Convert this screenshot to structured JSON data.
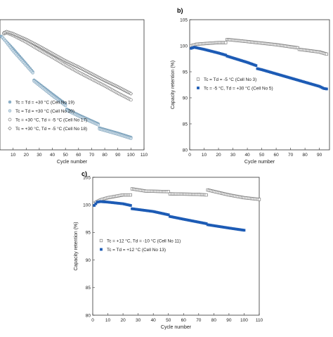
{
  "panels": [
    {
      "id": "a",
      "label": "",
      "chart_data": {
        "type": "scatter",
        "xlabel": "Cycle number",
        "ylabel": "",
        "xlim": [
          0,
          110
        ],
        "ylim": [
          80,
          105
        ],
        "xticks": [
          "10",
          "20",
          "30",
          "40",
          "50",
          "60",
          "70",
          "80",
          "90",
          "100",
          "110"
        ],
        "yticks": [],
        "legend_position": "bottom-left",
        "series": [
          {
            "name": "Tc = Td = +30 °C (Cell No 19)",
            "marker": "filled-circle",
            "color": "#8fb4cc",
            "x": [
              1,
              10,
              20,
              25,
              26,
              40,
              50,
              51,
              60,
              75,
              76,
              90,
              100
            ],
            "y": [
              101.8,
              99.4,
              96.5,
              95.0,
              93.4,
              90.7,
              88.8,
              87.8,
              86.7,
              85.0,
              84.2,
              83.2,
              82.4
            ]
          },
          {
            "name": "Tc = Td = +30 °C (Cell No 20)",
            "marker": "filled-circle",
            "color": "#c9dbe7",
            "x": [
              2,
              10,
              20,
              25,
              26,
              40,
              50,
              51,
              60,
              75,
              76,
              90,
              100
            ],
            "y": [
              101.6,
              99.0,
              96.2,
              94.8,
              93.2,
              90.4,
              88.5,
              87.6,
              86.5,
              84.8,
              84.0,
              83.0,
              82.2
            ]
          },
          {
            "name": "Tc = +30 °C, Td = -5 °C (Cell No 17)",
            "marker": "open-circle",
            "color": "#7f7f7f",
            "x": [
              3,
              5,
              10,
              20,
              30,
              40,
              50,
              60,
              70,
              80,
              90,
              100
            ],
            "y": [
              102.3,
              102.5,
              102.0,
              100.7,
              99.2,
              97.8,
              96.3,
              94.9,
              93.6,
              92.3,
              90.9,
              89.6
            ]
          },
          {
            "name": "Tc = +30 °C, Td = -5 °C (Cell No 18)",
            "marker": "open-diamond",
            "color": "#7f7f7f",
            "x": [
              3,
              5,
              10,
              20,
              30,
              40,
              50,
              60,
              70,
              80,
              90,
              100
            ],
            "y": [
              102.5,
              102.7,
              102.3,
              101.2,
              99.9,
              98.5,
              97.1,
              95.9,
              94.6,
              93.3,
              92.1,
              90.8
            ]
          }
        ]
      }
    },
    {
      "id": "b",
      "label": "b)",
      "chart_data": {
        "type": "scatter",
        "xlabel": "Cycle number",
        "ylabel": "Capacity retention (%)",
        "xlim": [
          0,
          97
        ],
        "ylim": [
          80,
          105
        ],
        "xticks": [
          "0",
          "10",
          "20",
          "30",
          "40",
          "50",
          "60",
          "70",
          "80",
          "90"
        ],
        "yticks": [
          "80",
          "85",
          "90",
          "95",
          "100",
          "105"
        ],
        "legend_position": "middle-left",
        "series": [
          {
            "name": "Tc = Td = -5 °C (Cell No 3)",
            "marker": "open-square",
            "color": "#7f7f7f",
            "x": [
              1,
              5,
              10,
              20,
              25,
              26,
              40,
              50,
              60,
              75,
              76,
              90,
              95
            ],
            "y": [
              100.0,
              100.3,
              100.4,
              100.6,
              100.6,
              101.2,
              100.8,
              100.5,
              100.2,
              99.6,
              99.3,
              98.8,
              98.4
            ]
          },
          {
            "name": "Tc = -5 °C, Td = +30 °C (Cell No 5)",
            "marker": "filled-square",
            "color": "#1c5bb5",
            "x": [
              1,
              3,
              5,
              10,
              20,
              25,
              26,
              40,
              46,
              47,
              50,
              60,
              70,
              80,
              85,
              90,
              93,
              95
            ],
            "y": [
              99.5,
              99.7,
              99.6,
              99.3,
              98.6,
              98.2,
              98.0,
              96.8,
              96.2,
              95.6,
              95.4,
              94.6,
              93.8,
              93.0,
              92.6,
              92.2,
              91.8,
              91.7
            ]
          }
        ]
      }
    },
    {
      "id": "c",
      "label": "c)",
      "chart_data": {
        "type": "scatter",
        "xlabel": "Cycle number",
        "ylabel": "Capacity retention (%)",
        "xlim": [
          0,
          110
        ],
        "ylim": [
          80,
          105
        ],
        "xticks": [
          "0",
          "10",
          "20",
          "30",
          "40",
          "50",
          "60",
          "70",
          "80",
          "90",
          "100",
          "110"
        ],
        "yticks": [
          "80",
          "85",
          "90",
          "95",
          "100",
          "105"
        ],
        "legend_position": "middle-left",
        "series": [
          {
            "name": "Tc = +12 °C, Td = -10 °C (Cell No 11)",
            "marker": "open-square",
            "color": "#7f7f7f",
            "x": [
              1,
              5,
              10,
              20,
              25,
              26,
              35,
              50,
              51,
              70,
              75,
              76,
              90,
              100,
              110
            ],
            "y": [
              100.3,
              100.9,
              101.3,
              101.8,
              101.8,
              102.9,
              102.5,
              102.4,
              102.0,
              101.9,
              101.8,
              102.7,
              101.8,
              101.3,
              101.0
            ]
          },
          {
            "name": "Tc = Td = +12 °C (Cell No 13)",
            "marker": "filled-square",
            "color": "#1c5bb5",
            "x": [
              1,
              3,
              5,
              10,
              20,
              25,
              26,
              40,
              50,
              51,
              60,
              75,
              76,
              90,
              100
            ],
            "y": [
              99.9,
              100.5,
              100.6,
              100.5,
              100.2,
              99.9,
              99.3,
              98.8,
              98.2,
              97.9,
              97.4,
              96.6,
              96.4,
              95.8,
              95.4
            ]
          }
        ]
      }
    }
  ]
}
